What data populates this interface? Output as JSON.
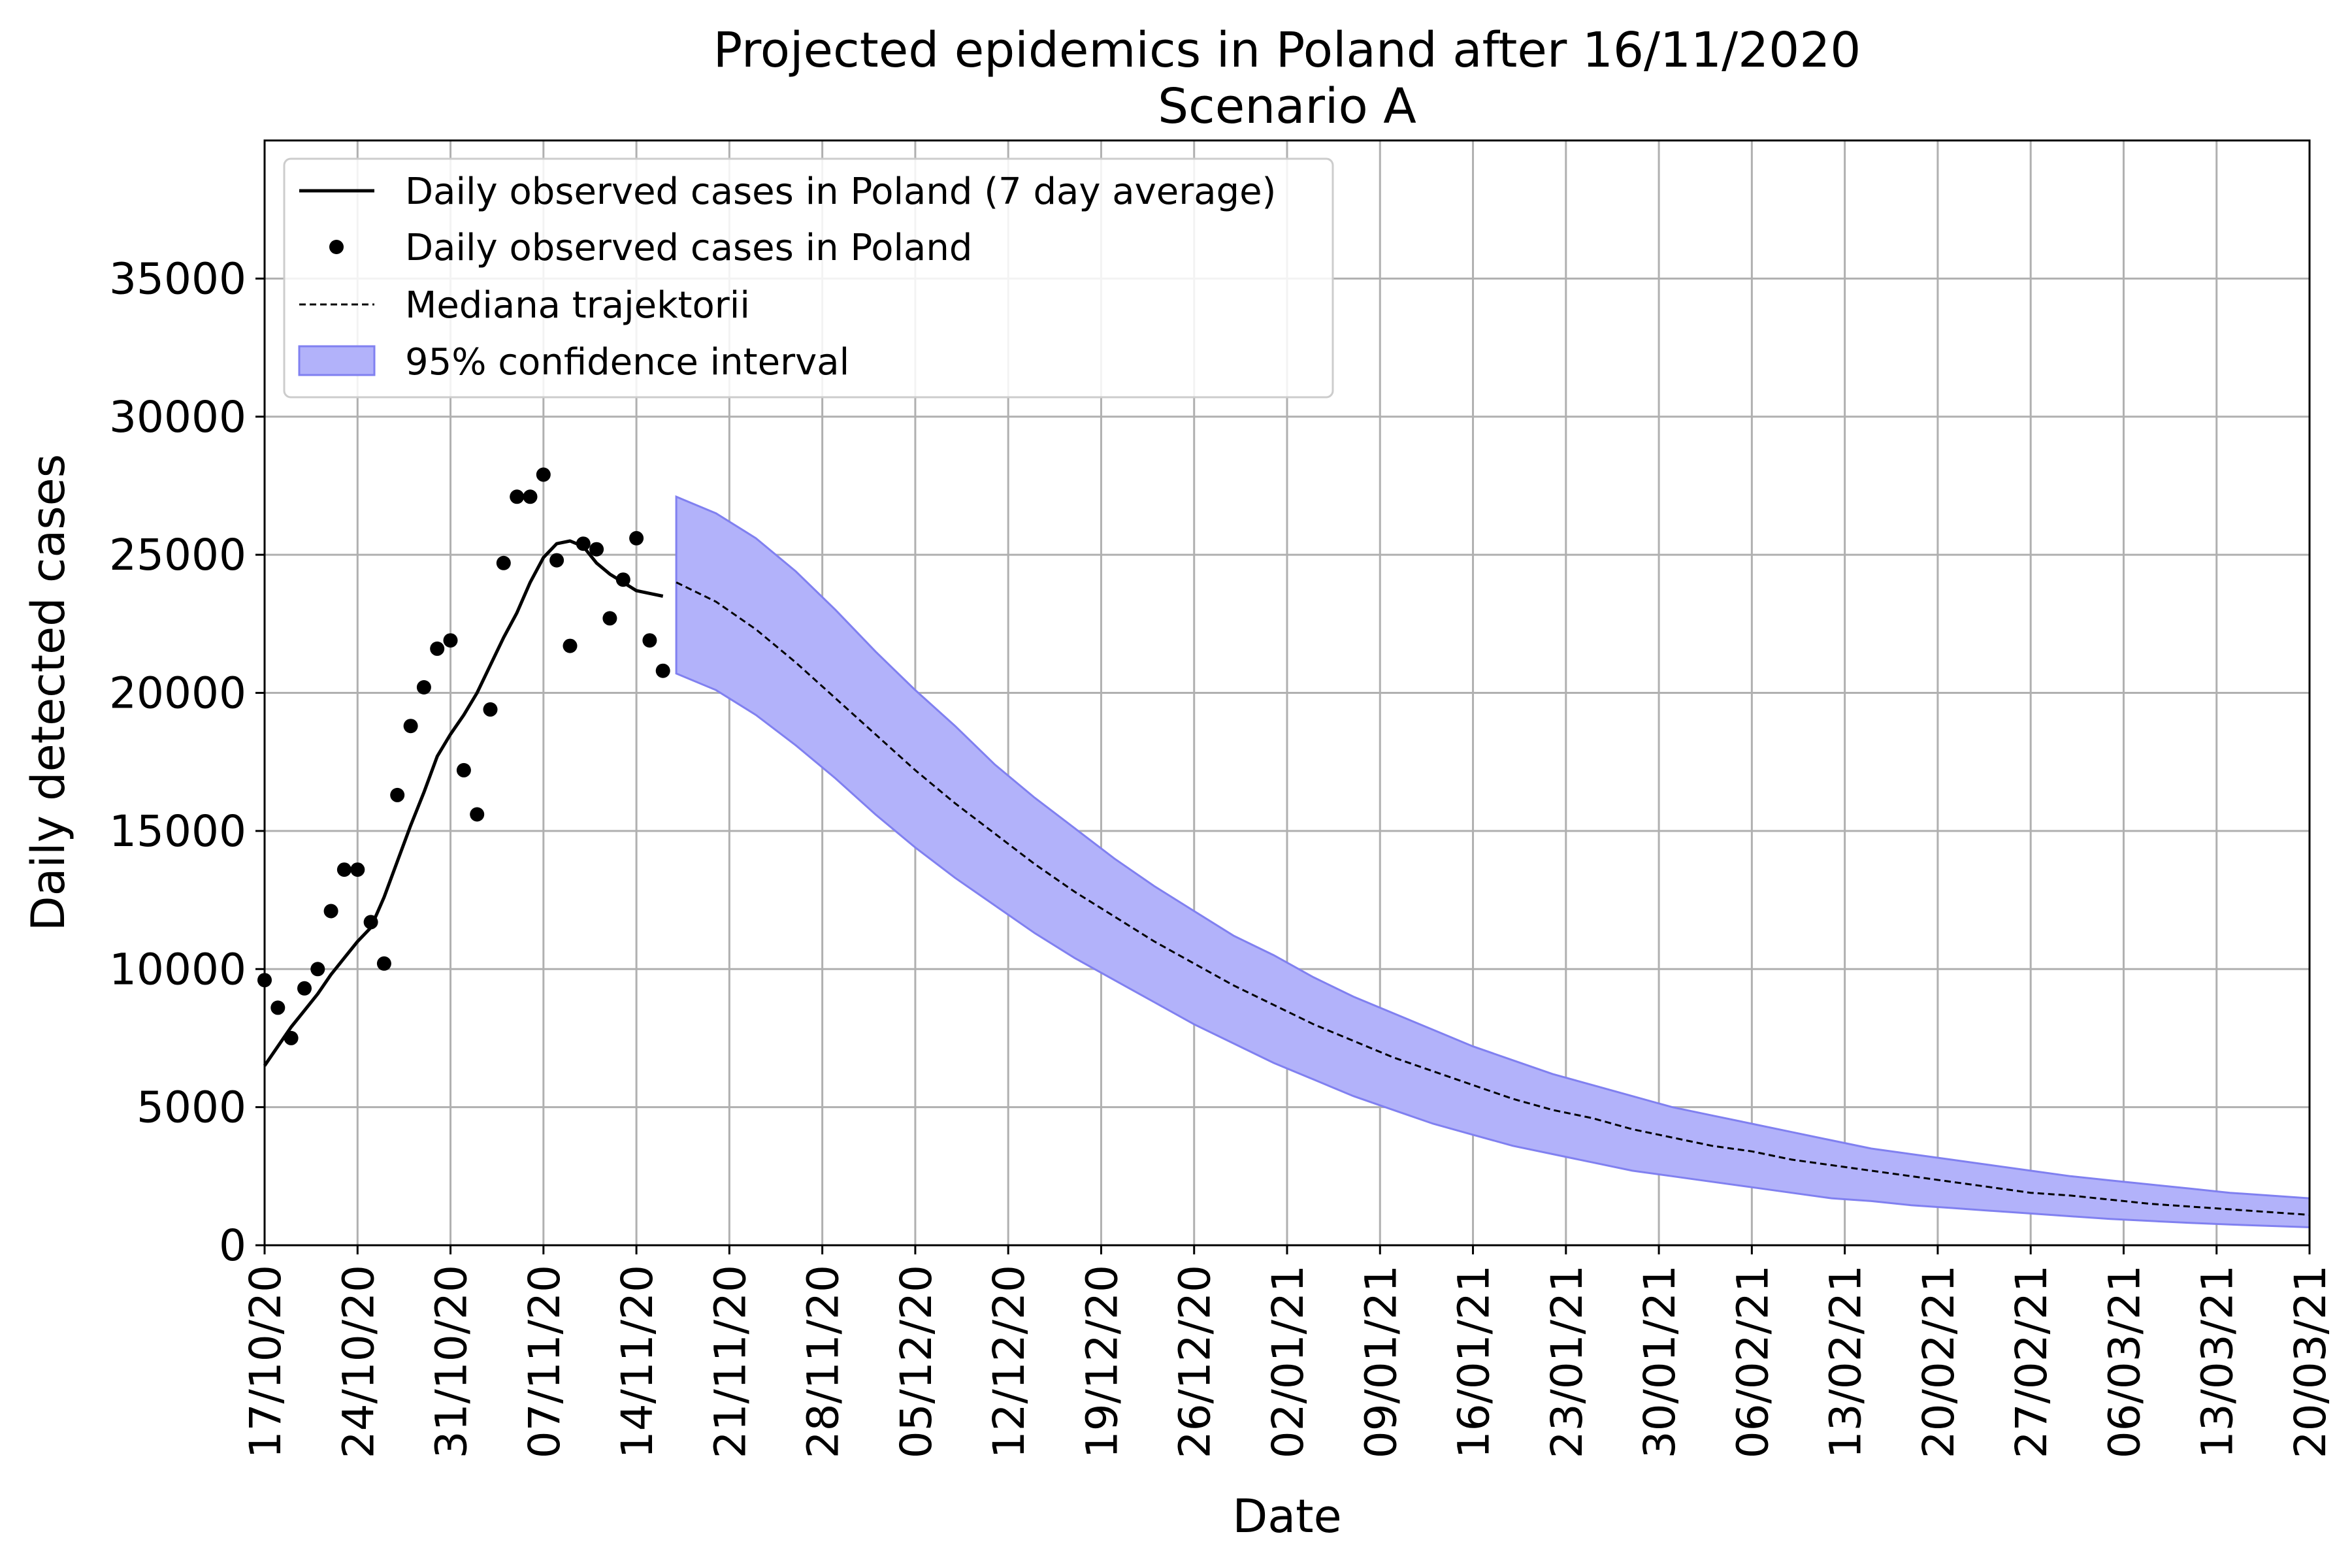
{
  "chart_data": {
    "type": "line",
    "title": "Projected epidemics in Poland after 16/11/2020",
    "subtitle": "Scenario A",
    "xlabel": "Date",
    "ylabel": "Daily detected cases",
    "x_start_date": "2020-10-17",
    "x_end_date": "2021-03-20",
    "xlim": [
      "2020-10-17",
      "2021-03-20"
    ],
    "ylim": [
      0,
      40000
    ],
    "grid": true,
    "legend_position": "top-left",
    "x_tick_labels": [
      "17/10/20",
      "24/10/20",
      "31/10/20",
      "07/11/20",
      "14/11/20",
      "21/11/20",
      "28/11/20",
      "05/12/20",
      "12/12/20",
      "19/12/20",
      "26/12/20",
      "02/01/21",
      "09/01/21",
      "16/01/21",
      "23/01/21",
      "30/01/21",
      "06/02/21",
      "13/02/21",
      "20/02/21",
      "27/02/21",
      "06/03/21",
      "13/03/21",
      "20/03/21"
    ],
    "y_ticks": [
      0,
      5000,
      10000,
      15000,
      20000,
      25000,
      30000,
      35000
    ],
    "y_tick_labels": [
      "0",
      "5000",
      "10000",
      "15000",
      "20000",
      "25000",
      "30000",
      "35000"
    ],
    "legend": [
      {
        "label": "Daily observed cases in Poland (7 day average)",
        "style": "solid-line"
      },
      {
        "label": "Daily observed cases in Poland",
        "style": "dot"
      },
      {
        "label": "Mediana trajektorii",
        "style": "dashed-line"
      },
      {
        "label": "95% confidence interval",
        "style": "band"
      }
    ],
    "colors": {
      "band_fill": "#b2b2fa",
      "band_edge": "#8080f0",
      "line": "#000000"
    },
    "series": [
      {
        "name": "Daily observed cases in Poland (7 day average)",
        "style": "solid",
        "x": [
          "2020-10-17",
          "2020-10-18",
          "2020-10-19",
          "2020-10-20",
          "2020-10-21",
          "2020-10-22",
          "2020-10-23",
          "2020-10-24",
          "2020-10-25",
          "2020-10-26",
          "2020-10-27",
          "2020-10-28",
          "2020-10-29",
          "2020-10-30",
          "2020-10-31",
          "2020-11-01",
          "2020-11-02",
          "2020-11-03",
          "2020-11-04",
          "2020-11-05",
          "2020-11-06",
          "2020-11-07",
          "2020-11-08",
          "2020-11-09",
          "2020-11-10",
          "2020-11-11",
          "2020-11-12",
          "2020-11-13",
          "2020-11-14",
          "2020-11-15",
          "2020-11-16"
        ],
        "y": [
          6500,
          7200,
          7900,
          8500,
          9100,
          9800,
          10400,
          11000,
          11500,
          12600,
          13900,
          15200,
          16400,
          17700,
          18500,
          19200,
          20000,
          21000,
          22000,
          22900,
          24000,
          24900,
          25400,
          25500,
          25300,
          24700,
          24300,
          24000,
          23700,
          23600,
          23500
        ]
      },
      {
        "name": "Daily observed cases in Poland",
        "style": "dots",
        "x": [
          "2020-10-17",
          "2020-10-18",
          "2020-10-19",
          "2020-10-20",
          "2020-10-21",
          "2020-10-22",
          "2020-10-23",
          "2020-10-24",
          "2020-10-25",
          "2020-10-26",
          "2020-10-27",
          "2020-10-28",
          "2020-10-29",
          "2020-10-30",
          "2020-10-31",
          "2020-11-01",
          "2020-11-02",
          "2020-11-03",
          "2020-11-04",
          "2020-11-05",
          "2020-11-06",
          "2020-11-07",
          "2020-11-08",
          "2020-11-09",
          "2020-11-10",
          "2020-11-11",
          "2020-11-12",
          "2020-11-13",
          "2020-11-14",
          "2020-11-15",
          "2020-11-16"
        ],
        "y": [
          9600,
          8600,
          7500,
          9300,
          10000,
          12100,
          13600,
          13600,
          11700,
          10200,
          16300,
          18800,
          20200,
          21600,
          21900,
          17200,
          15600,
          19400,
          24700,
          27100,
          27100,
          27900,
          24800,
          21700,
          25400,
          25200,
          22700,
          24100,
          25600,
          21900,
          20800
        ]
      },
      {
        "name": "Mediana trajektorii",
        "style": "dashed",
        "x": [
          "2020-11-17",
          "2020-11-20",
          "2020-11-23",
          "2020-11-26",
          "2020-11-29",
          "2020-12-02",
          "2020-12-05",
          "2020-12-08",
          "2020-12-11",
          "2020-12-14",
          "2020-12-17",
          "2020-12-20",
          "2020-12-23",
          "2020-12-26",
          "2020-12-29",
          "2021-01-01",
          "2021-01-04",
          "2021-01-07",
          "2021-01-10",
          "2021-01-13",
          "2021-01-16",
          "2021-01-19",
          "2021-01-22",
          "2021-01-25",
          "2021-01-28",
          "2021-01-31",
          "2021-02-03",
          "2021-02-06",
          "2021-02-09",
          "2021-02-12",
          "2021-02-15",
          "2021-02-18",
          "2021-02-21",
          "2021-02-24",
          "2021-02-27",
          "2021-03-02",
          "2021-03-05",
          "2021-03-08",
          "2021-03-11",
          "2021-03-14",
          "2021-03-17",
          "2021-03-20"
        ],
        "y": [
          24000,
          23300,
          22300,
          21100,
          19800,
          18500,
          17200,
          16000,
          14900,
          13800,
          12800,
          11900,
          11000,
          10200,
          9400,
          8700,
          8000,
          7400,
          6800,
          6300,
          5800,
          5300,
          4900,
          4600,
          4200,
          3900,
          3600,
          3400,
          3100,
          2900,
          2700,
          2500,
          2300,
          2100,
          1900,
          1800,
          1650,
          1500,
          1400,
          1300,
          1200,
          1100
        ]
      },
      {
        "name": "95% confidence interval",
        "style": "band",
        "x": [
          "2020-11-17",
          "2020-11-20",
          "2020-11-23",
          "2020-11-26",
          "2020-11-29",
          "2020-12-02",
          "2020-12-05",
          "2020-12-08",
          "2020-12-11",
          "2020-12-14",
          "2020-12-17",
          "2020-12-20",
          "2020-12-23",
          "2020-12-26",
          "2020-12-29",
          "2021-01-01",
          "2021-01-04",
          "2021-01-07",
          "2021-01-10",
          "2021-01-13",
          "2021-01-16",
          "2021-01-19",
          "2021-01-22",
          "2021-01-25",
          "2021-01-28",
          "2021-01-31",
          "2021-02-03",
          "2021-02-06",
          "2021-02-09",
          "2021-02-12",
          "2021-02-15",
          "2021-02-18",
          "2021-02-21",
          "2021-02-24",
          "2021-02-27",
          "2021-03-02",
          "2021-03-05",
          "2021-03-08",
          "2021-03-11",
          "2021-03-14",
          "2021-03-17",
          "2021-03-20"
        ],
        "upper": [
          27100,
          26500,
          25600,
          24400,
          23000,
          21500,
          20100,
          18800,
          17400,
          16200,
          15100,
          14000,
          13000,
          12100,
          11200,
          10500,
          9700,
          9000,
          8400,
          7800,
          7200,
          6700,
          6200,
          5800,
          5400,
          5000,
          4700,
          4400,
          4100,
          3800,
          3500,
          3300,
          3100,
          2900,
          2700,
          2500,
          2350,
          2200,
          2050,
          1900,
          1800,
          1700
        ],
        "lower": [
          20700,
          20100,
          19200,
          18100,
          16900,
          15600,
          14400,
          13300,
          12300,
          11300,
          10400,
          9600,
          8800,
          8000,
          7300,
          6600,
          6000,
          5400,
          4900,
          4400,
          4000,
          3600,
          3300,
          3000,
          2700,
          2500,
          2300,
          2100,
          1900,
          1700,
          1600,
          1450,
          1350,
          1250,
          1150,
          1050,
          950,
          880,
          810,
          750,
          700,
          650
        ]
      }
    ]
  }
}
